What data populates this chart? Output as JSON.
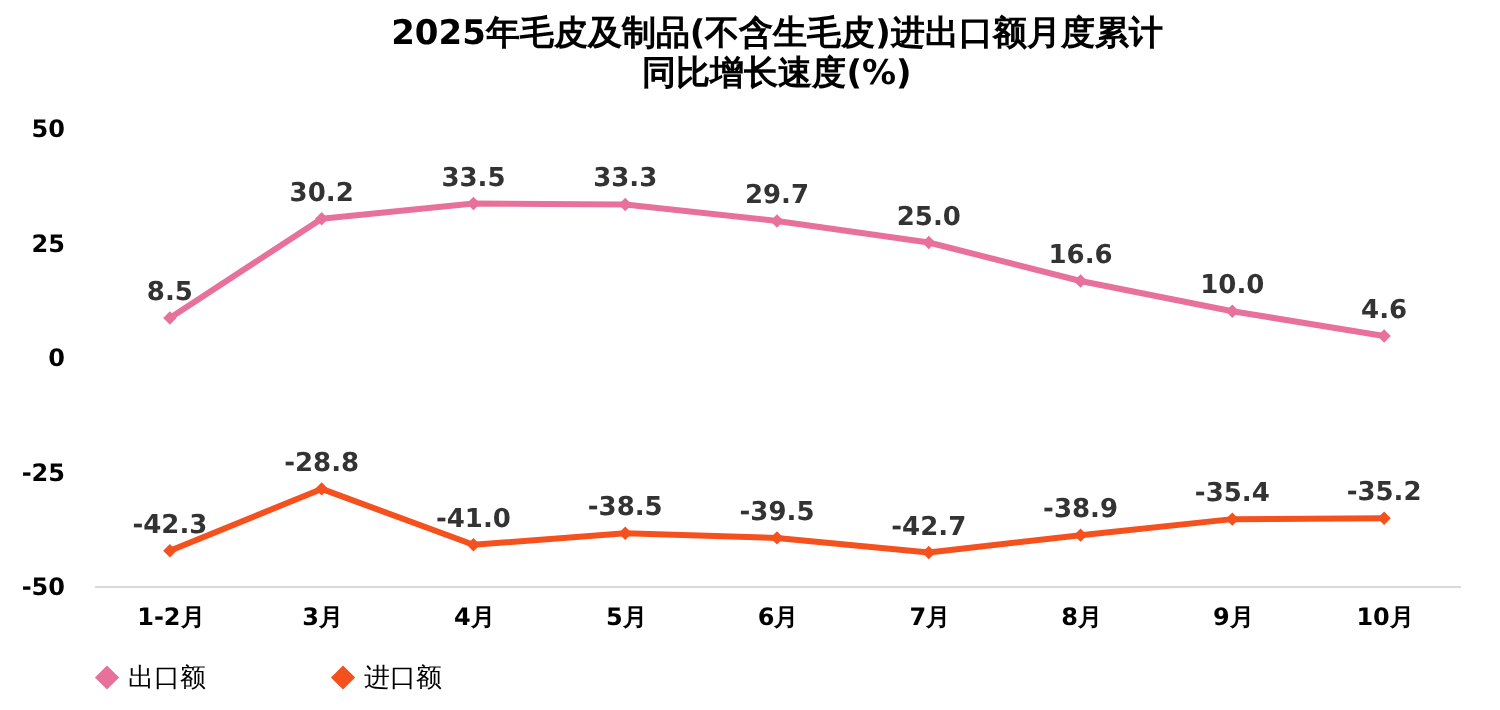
{
  "chart_data": {
    "type": "line",
    "title": "2025年毛皮及制品(不含生毛皮)进出口额月度累计",
    "subtitle": "同比增长速度(%)",
    "categories": [
      "1-2月",
      "3月",
      "4月",
      "5月",
      "6月",
      "7月",
      "8月",
      "9月",
      "10月"
    ],
    "series": [
      {
        "name": "出口额",
        "color": "#e8719b",
        "values": [
          8.5,
          30.2,
          33.5,
          33.3,
          29.7,
          25.0,
          16.6,
          10.0,
          4.6
        ],
        "value_labels": [
          "8.5",
          "30.2",
          "33.5",
          "33.3",
          "29.7",
          "25.0",
          "16.6",
          "10.0",
          "4.6"
        ]
      },
      {
        "name": "进口额",
        "color": "#f4511e",
        "values": [
          -42.3,
          -28.8,
          -41.0,
          -38.5,
          -39.5,
          -42.7,
          -38.9,
          -35.4,
          -35.2
        ],
        "value_labels": [
          "-42.3",
          "-28.8",
          "-41.0",
          "-38.5",
          "-39.5",
          "-42.7",
          "-38.9",
          "-35.4",
          "-35.2"
        ]
      }
    ],
    "ylim": [
      -50,
      50
    ],
    "yticks": [
      -50,
      -25,
      0,
      25,
      50
    ],
    "grid": false,
    "legend": "bottom",
    "marker": "diamond",
    "line_style": "solid"
  }
}
